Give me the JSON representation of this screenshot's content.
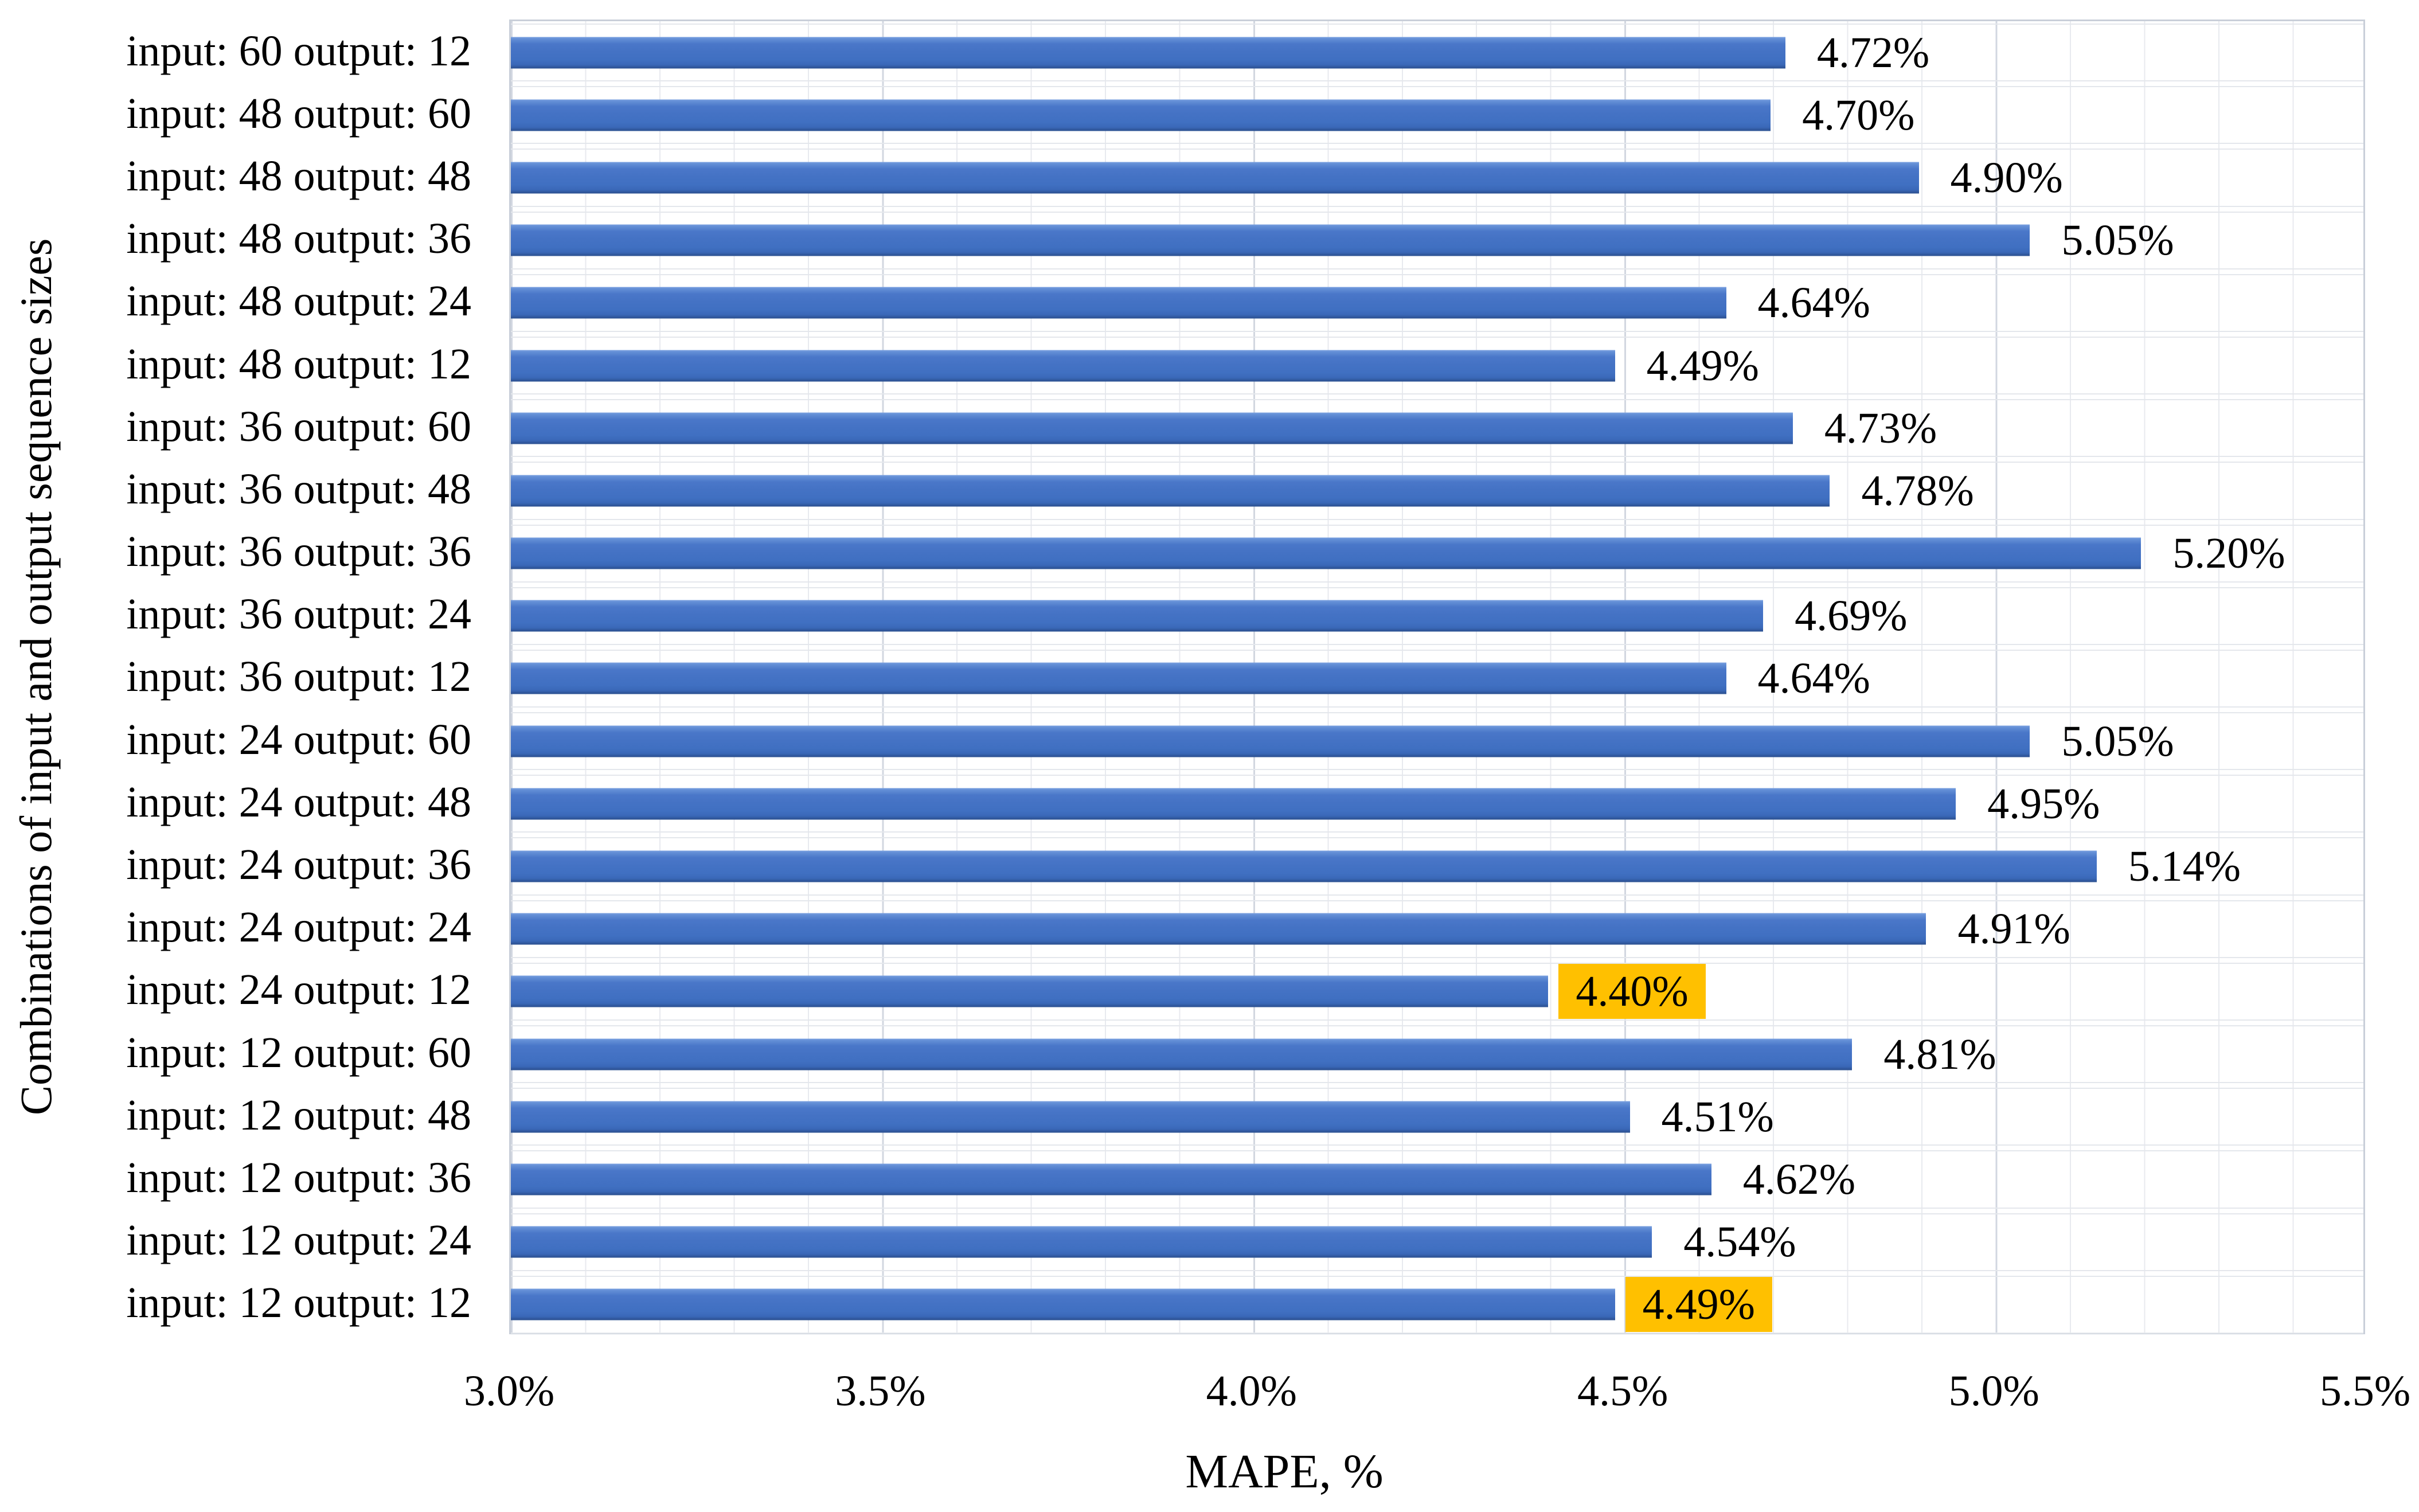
{
  "chart_data": {
    "type": "bar",
    "orientation": "horizontal",
    "xlabel": "MAPE, %",
    "ylabel": "Combinations of input and output sequence sizes",
    "x_ticks": [
      "3.0%",
      "3.5%",
      "4.0%",
      "4.5%",
      "5.0%",
      "5.5%"
    ],
    "xlim": [
      3.0,
      5.5
    ],
    "axis_minimum_note": "bars are clipped at axis minimum 3.0%",
    "grid": {
      "minor_step_pct": 0.1,
      "major_step_pct": 0.5
    },
    "legend_position": "none",
    "categories": [
      "input: 60 output: 12",
      "input: 48 output: 60",
      "input: 48 output: 48",
      "input: 48 output: 36",
      "input: 48 output: 24",
      "input: 48 output: 12",
      "input: 36 output: 60",
      "input: 36 output: 48",
      "input: 36 output: 36",
      "input: 36 output: 24",
      "input: 36 output: 12",
      "input: 24 output: 60",
      "input: 24 output: 48",
      "input: 24 output: 36",
      "input: 24 output: 24",
      "input: 24 output: 12",
      "input: 12 output: 60",
      "input: 12 output: 48",
      "input: 12 output: 36",
      "input: 12 output: 24",
      "input: 12 output: 12"
    ],
    "values": [
      4.72,
      4.7,
      4.9,
      5.05,
      4.64,
      4.49,
      4.73,
      4.78,
      5.2,
      4.69,
      4.64,
      5.05,
      4.95,
      5.14,
      4.91,
      4.4,
      4.81,
      4.51,
      4.62,
      4.54,
      4.49
    ],
    "data_labels": [
      "4.72%",
      "4.70%",
      "4.90%",
      "5.05%",
      "4.64%",
      "4.49%",
      "4.73%",
      "4.78%",
      "5.20%",
      "4.69%",
      "4.64%",
      "5.05%",
      "4.95%",
      "5.14%",
      "4.91%",
      "4.40%",
      "4.81%",
      "4.51%",
      "4.62%",
      "4.54%",
      "4.49%"
    ],
    "highlighted_indices": [
      15,
      20
    ],
    "colors": {
      "bar": "#4472C4",
      "bar_gradient_top": "#7BA1E0",
      "bar_gradient_bottom": "#2B5191",
      "highlight_label_bg": "#FFC000",
      "gridline_minor": "#E8EAEF",
      "gridline_major": "#D2D7E0",
      "plot_border": "#C9CFD9",
      "text": "#000000"
    }
  }
}
